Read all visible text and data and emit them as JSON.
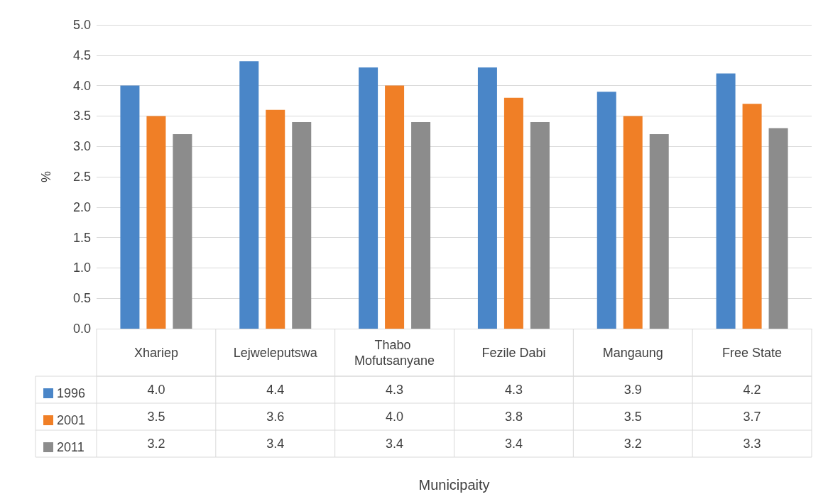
{
  "chart_data": {
    "type": "bar",
    "annotations": [
      "Municipaity"
    ],
    "ylabel": "%",
    "categories": [
      "Xhariep",
      "Lejweleputswa",
      "Thabo Mofutsanyane",
      "Fezile Dabi",
      "Mangaung",
      "Free State"
    ],
    "series": [
      {
        "name": "1996",
        "color": "#4a86c8",
        "values": [
          4.0,
          4.4,
          4.3,
          4.3,
          3.9,
          4.2
        ],
        "value_labels": [
          "4.0",
          "4.4",
          "4.3",
          "4.3",
          "3.9",
          "4.2"
        ]
      },
      {
        "name": "2001",
        "color": "#f07f26",
        "values": [
          3.5,
          3.6,
          4.0,
          3.8,
          3.5,
          3.7
        ],
        "value_labels": [
          "3.5",
          "3.6",
          "4.0",
          "3.8",
          "3.5",
          "3.7"
        ]
      },
      {
        "name": "2011",
        "color": "#8c8c8c",
        "values": [
          3.2,
          3.4,
          3.4,
          3.4,
          3.2,
          3.3
        ],
        "value_labels": [
          "3.2",
          "3.4",
          "3.4",
          "3.4",
          "3.2",
          "3.3"
        ]
      }
    ],
    "ylim": [
      0,
      5
    ],
    "yticks": [
      {
        "value": 0,
        "label": "0.0"
      },
      0.5,
      {
        "value": 1,
        "label": "1.0"
      },
      1.5,
      {
        "value": 2,
        "label": "2.0"
      },
      2.5,
      {
        "value": 3,
        "label": "3.0"
      },
      3.5,
      {
        "value": 4,
        "label": "4.0"
      },
      4.5,
      {
        "value": 5,
        "label": "5.0"
      }
    ],
    "grid": "y",
    "legend": "bottom"
  }
}
